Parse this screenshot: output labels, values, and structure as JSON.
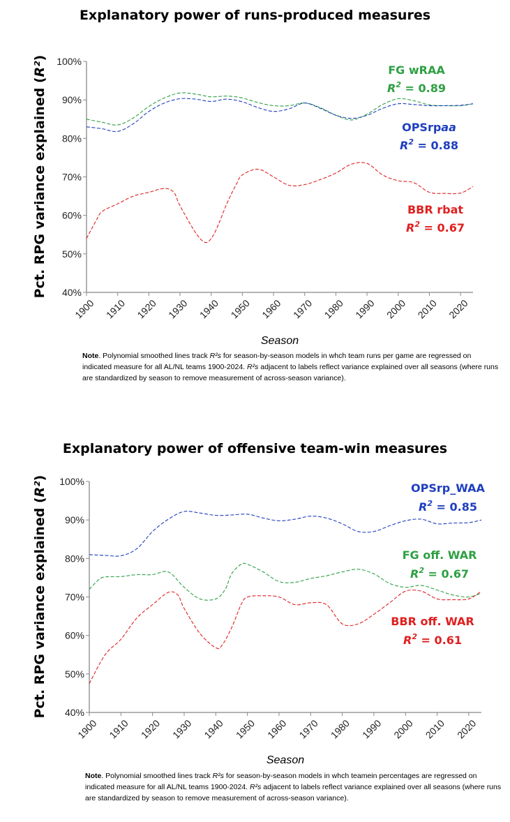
{
  "chart_data": [
    {
      "type": "line",
      "title": "Explanatory power of runs-produced measures",
      "ylabel": "Pct. RPG variance explained (R²)",
      "xlabel": "Season",
      "xlim": [
        1900,
        2024
      ],
      "ylim": [
        40,
        100
      ],
      "xticks": [
        "1900",
        "1910",
        "1920",
        "1930",
        "1940",
        "1950",
        "1960",
        "1970",
        "1980",
        "1990",
        "2000",
        "2010",
        "2020"
      ],
      "yticks": [
        "40%",
        "50%",
        "60%",
        "70%",
        "80%",
        "90%",
        "100%"
      ],
      "grid": false,
      "legend": "inline labels at right",
      "series": [
        {
          "name": "FG wRAA",
          "r2_label": "R² = 0.89",
          "color": "#2ea043",
          "x": [
            1900,
            1905,
            1910,
            1915,
            1920,
            1925,
            1930,
            1935,
            1940,
            1945,
            1950,
            1955,
            1960,
            1965,
            1970,
            1975,
            1980,
            1985,
            1990,
            1995,
            2000,
            2005,
            2010,
            2015,
            2020,
            2024
          ],
          "values": [
            85.0,
            84.2,
            83.5,
            85.3,
            88.3,
            90.5,
            91.8,
            91.5,
            90.8,
            91.0,
            90.5,
            89.3,
            88.5,
            88.5,
            89.2,
            88.0,
            86.0,
            84.8,
            86.3,
            88.8,
            90.3,
            89.8,
            88.7,
            88.5,
            88.5,
            89.0
          ]
        },
        {
          "name": "OPSrpaa",
          "r2_label": "R² = 0.88",
          "color": "#1f3fbf",
          "x": [
            1900,
            1905,
            1910,
            1915,
            1920,
            1925,
            1930,
            1935,
            1940,
            1945,
            1950,
            1955,
            1960,
            1965,
            1970,
            1975,
            1980,
            1985,
            1990,
            1995,
            2000,
            2005,
            2010,
            2015,
            2020,
            2024
          ],
          "values": [
            83.0,
            82.5,
            81.8,
            83.8,
            87.0,
            89.2,
            90.3,
            90.2,
            89.6,
            90.2,
            89.5,
            88.0,
            87.0,
            87.7,
            89.2,
            87.8,
            86.0,
            85.2,
            86.0,
            87.8,
            89.0,
            88.8,
            88.5,
            88.5,
            88.6,
            89.0
          ]
        },
        {
          "name": "BBR rbat",
          "r2_label": "R² = 0.67",
          "color": "#e02020",
          "x": [
            1900,
            1903,
            1905,
            1910,
            1915,
            1920,
            1925,
            1928,
            1930,
            1935,
            1938,
            1940,
            1942,
            1945,
            1948,
            1950,
            1955,
            1960,
            1965,
            1970,
            1975,
            1980,
            1985,
            1990,
            1995,
            2000,
            2005,
            2010,
            2015,
            2020,
            2024
          ],
          "values": [
            54.0,
            58.5,
            61.0,
            63.0,
            65.0,
            66.0,
            67.0,
            66.0,
            62.5,
            55.5,
            53.0,
            54.0,
            57.0,
            63.0,
            68.0,
            70.5,
            72.0,
            70.0,
            67.8,
            68.0,
            69.3,
            71.0,
            73.3,
            73.5,
            70.5,
            69.0,
            68.5,
            66.0,
            65.7,
            65.8,
            67.5
          ]
        }
      ]
    },
    {
      "type": "line",
      "title": "Explanatory power of offensive team-win measures",
      "ylabel": "Pct. RPG variance explained (R²)",
      "xlabel": "Season",
      "xlim": [
        1900,
        2024
      ],
      "ylim": [
        40,
        100
      ],
      "xticks": [
        "1900",
        "1910",
        "1920",
        "1930",
        "1940",
        "1950",
        "1960",
        "1970",
        "1980",
        "1990",
        "2000",
        "2010",
        "2020"
      ],
      "yticks": [
        "40%",
        "50%",
        "60%",
        "70%",
        "80%",
        "90%",
        "100%"
      ],
      "grid": false,
      "legend": "inline labels at right",
      "series": [
        {
          "name": "OPSrp_WAA",
          "r2_label": "R² = 0.85",
          "color": "#1f3fbf",
          "x": [
            1900,
            1905,
            1910,
            1915,
            1920,
            1925,
            1930,
            1935,
            1940,
            1945,
            1950,
            1955,
            1960,
            1965,
            1970,
            1975,
            1980,
            1985,
            1990,
            1995,
            2000,
            2005,
            2010,
            2015,
            2020,
            2024
          ],
          "values": [
            81.0,
            80.8,
            80.7,
            82.5,
            87.0,
            90.2,
            92.2,
            91.8,
            91.2,
            91.3,
            91.5,
            90.5,
            89.8,
            90.2,
            91.0,
            90.5,
            89.0,
            87.0,
            87.0,
            88.5,
            89.8,
            90.2,
            89.0,
            89.2,
            89.3,
            90.0
          ]
        },
        {
          "name": "FG off. WAR",
          "r2_label": "R² = 0.67",
          "color": "#2ea043",
          "x": [
            1900,
            1903,
            1905,
            1910,
            1915,
            1920,
            1925,
            1930,
            1935,
            1940,
            1943,
            1945,
            1948,
            1950,
            1955,
            1960,
            1965,
            1970,
            1975,
            1980,
            1985,
            1990,
            1995,
            2000,
            2005,
            2010,
            2015,
            2020,
            2024
          ],
          "values": [
            72.0,
            74.5,
            75.2,
            75.3,
            75.8,
            75.8,
            76.5,
            72.5,
            69.5,
            69.5,
            72.0,
            76.0,
            78.5,
            78.5,
            76.5,
            74.0,
            73.8,
            74.8,
            75.5,
            76.5,
            77.2,
            76.0,
            73.5,
            72.5,
            73.0,
            71.8,
            70.5,
            70.0,
            71.0
          ]
        },
        {
          "name": "BBR off. WAR",
          "r2_label": "R² = 0.61",
          "color": "#e02020",
          "x": [
            1900,
            1905,
            1910,
            1915,
            1920,
            1925,
            1928,
            1930,
            1935,
            1940,
            1942,
            1945,
            1948,
            1950,
            1955,
            1960,
            1965,
            1970,
            1975,
            1980,
            1985,
            1990,
            1995,
            2000,
            2005,
            2010,
            2015,
            2020,
            2024
          ],
          "values": [
            47.5,
            55.0,
            59.0,
            64.5,
            68.0,
            71.2,
            70.5,
            67.0,
            60.5,
            56.8,
            57.5,
            62.0,
            68.0,
            70.0,
            70.3,
            70.0,
            68.0,
            68.5,
            68.0,
            63.0,
            63.0,
            65.5,
            68.5,
            71.5,
            71.5,
            69.5,
            69.3,
            69.5,
            71.5
          ]
        }
      ]
    }
  ],
  "panels": [
    {
      "title": "Explanatory power of runs-produced measures",
      "ylabel_text": "Pct. RPG variance explained (",
      "ylabel_r2": "R²",
      "ylabel_close": ")",
      "xlabel": "Season",
      "labels": [
        {
          "name": "FG wRAA",
          "r2": "0.89",
          "color": "#2ea043"
        },
        {
          "name_main": "OPSrp",
          "name_ital": "aa",
          "r2": "0.88",
          "color": "#1f3fbf"
        },
        {
          "name": "BBR rbat",
          "r2": "0.67",
          "color": "#e02020"
        }
      ],
      "note": {
        "lead": "Note",
        "parts": [
          ". Polynomial smoothed lines track ",
          " for season-by-season models in whch team runs per game are regressed on indicated measure for all AL/NL teams 1900-2024. ",
          " adjacent to labels reflect variance explained over all seasons (where runs are standardized by season to remove measurement of across-season variance)."
        ],
        "r2s": "R²s"
      }
    },
    {
      "title": "Explanatory power of offensive team-win measures",
      "ylabel_text": "Pct. RPG variance explained (",
      "ylabel_r2": "R²",
      "ylabel_close": ")",
      "xlabel": "Season",
      "labels": [
        {
          "name": "OPSrp_WAA",
          "r2": "0.85",
          "color": "#1f3fbf"
        },
        {
          "name": "FG off. WAR",
          "r2": "0.67",
          "color": "#2ea043"
        },
        {
          "name": "BBR off. WAR",
          "r2": "0.61",
          "color": "#e02020"
        }
      ],
      "note": {
        "lead": "Note",
        "parts": [
          ". Polynomial smoothed lines track ",
          " for season-by-season models in whch teamein percentages are regressed on indicated measure for all AL/NL teams 1900-2024. ",
          " adjacent to labels reflect variance explained over all seasons (where runs are standardized by season to remove measurement of across-season variance)."
        ],
        "r2s": "R²s"
      }
    }
  ]
}
